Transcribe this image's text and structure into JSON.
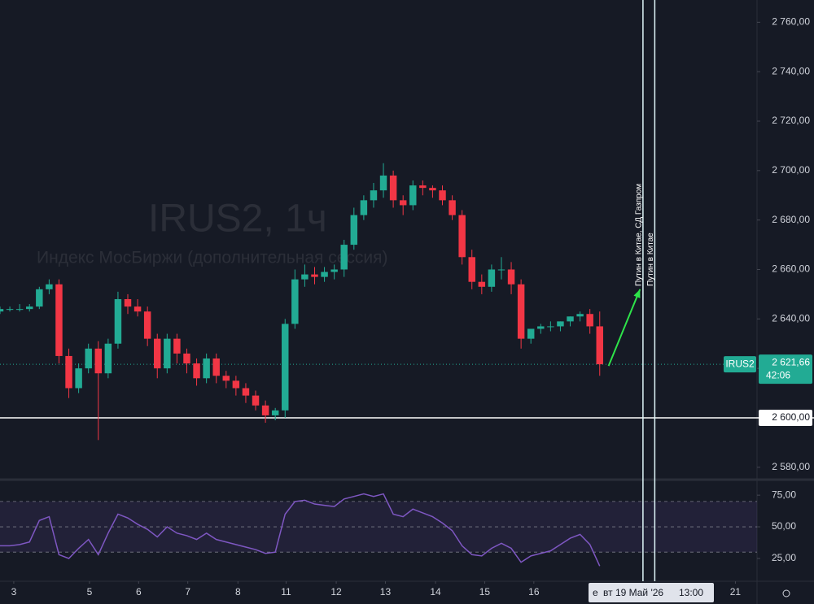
{
  "chart_data": {
    "type": "candlestick",
    "watermark": "IRUS2, 1ч",
    "subtitle": "Индекс МосБиржи (дополнительная сессия)",
    "up_color": "#22ab94",
    "down_color": "#f23645",
    "x": [
      0,
      1,
      2,
      3,
      4,
      5,
      6,
      7,
      8,
      9,
      10,
      11,
      12,
      13,
      14,
      15,
      16,
      17,
      18,
      19,
      20,
      21,
      22,
      23,
      24,
      25,
      26,
      27,
      28,
      29,
      30,
      31,
      32,
      33,
      34,
      35,
      36,
      37,
      38,
      39,
      40,
      41,
      42,
      43,
      44,
      45,
      46,
      47,
      48,
      49,
      50,
      51,
      52,
      53,
      54,
      55,
      56,
      57,
      58,
      59,
      60,
      61
    ],
    "open": [
      2643,
      2644,
      2644,
      2644,
      2645,
      2652,
      2654,
      2625,
      2612,
      2620,
      2628,
      2618,
      2630,
      2648,
      2645,
      2643,
      2632,
      2620,
      2632,
      2626,
      2622,
      2616,
      2624,
      2617,
      2615,
      2612,
      2609,
      2605,
      2601,
      2603,
      2638,
      2656,
      2658,
      2657,
      2659,
      2660,
      2670,
      2682,
      2688,
      2692,
      2698,
      2688,
      2686,
      2694,
      2693,
      2692,
      2688,
      2682,
      2665,
      2655,
      2653,
      2660,
      2660,
      2654,
      2632,
      2636,
      2637,
      2637,
      2639,
      2641,
      2642,
      2637
    ],
    "high": [
      2645,
      2645,
      2646,
      2646,
      2653,
      2656,
      2656,
      2628,
      2622,
      2630,
      2631,
      2632,
      2651,
      2650,
      2648,
      2645,
      2634,
      2634,
      2634,
      2628,
      2624,
      2626,
      2626,
      2619,
      2617,
      2614,
      2611,
      2607,
      2604,
      2640,
      2660,
      2662,
      2661,
      2661,
      2662,
      2672,
      2685,
      2690,
      2695,
      2703,
      2700,
      2690,
      2696,
      2696,
      2694,
      2694,
      2690,
      2684,
      2668,
      2658,
      2662,
      2665,
      2663,
      2656,
      2636,
      2638,
      2639,
      2639,
      2641,
      2643,
      2644,
      2643
    ],
    "low": [
      2642,
      2643,
      2643,
      2643,
      2644,
      2650,
      2622,
      2608,
      2610,
      2618,
      2591,
      2616,
      2628,
      2642,
      2641,
      2629,
      2616,
      2618,
      2622,
      2618,
      2613,
      2614,
      2614,
      2612,
      2609,
      2606,
      2603,
      2598,
      2599,
      2600,
      2636,
      2653,
      2654,
      2655,
      2656,
      2657,
      2668,
      2680,
      2685,
      2689,
      2685,
      2682,
      2684,
      2690,
      2689,
      2686,
      2680,
      2662,
      2652,
      2650,
      2651,
      2656,
      2650,
      2628,
      2630,
      2634,
      2635,
      2635,
      2637,
      2639,
      2634,
      2617
    ],
    "close": [
      2644,
      2644,
      2644,
      2645,
      2652,
      2654,
      2625,
      2612,
      2620,
      2628,
      2618,
      2630,
      2648,
      2645,
      2643,
      2632,
      2620,
      2632,
      2626,
      2622,
      2616,
      2624,
      2617,
      2615,
      2612,
      2609,
      2605,
      2601,
      2603,
      2638,
      2656,
      2658,
      2657,
      2659,
      2660,
      2670,
      2682,
      2688,
      2692,
      2698,
      2688,
      2686,
      2694,
      2693,
      2692,
      2688,
      2682,
      2665,
      2655,
      2653,
      2660,
      2660,
      2654,
      2632,
      2636,
      2637,
      2637,
      2639,
      2641,
      2642,
      2637,
      2621.66
    ],
    "xlim": [
      0,
      77
    ],
    "xticks": [
      {
        "value": 1.4,
        "label": "3"
      },
      {
        "value": 9.1,
        "label": "5"
      },
      {
        "value": 14.1,
        "label": "6"
      },
      {
        "value": 19.1,
        "label": "7"
      },
      {
        "value": 24.2,
        "label": "8"
      },
      {
        "value": 29.1,
        "label": "11"
      },
      {
        "value": 34.2,
        "label": "12"
      },
      {
        "value": 39.2,
        "label": "13"
      },
      {
        "value": 44.3,
        "label": "14"
      },
      {
        "value": 49.3,
        "label": "15"
      },
      {
        "value": 54.3,
        "label": "16"
      },
      {
        "value": 74.8,
        "label": "21"
      }
    ],
    "ylim": [
      2575,
      2769
    ],
    "yticks": [
      {
        "value": 2580,
        "label": "2 580,00"
      },
      {
        "value": 2600,
        "label": "2 600,00"
      },
      {
        "value": 2620,
        "label": "2 620,00"
      },
      {
        "value": 2640,
        "label": "2 640,00"
      },
      {
        "value": 2660,
        "label": "2 660,00"
      },
      {
        "value": 2680,
        "label": "2 680,00"
      },
      {
        "value": 2700,
        "label": "2 700,00"
      },
      {
        "value": 2720,
        "label": "2 720,00"
      },
      {
        "value": 2740,
        "label": "2 740,00"
      },
      {
        "value": 2760,
        "label": "2 760,00"
      }
    ],
    "hline": {
      "value": 2600,
      "label": "2 600,00"
    },
    "last_price": {
      "symbol": "IRUS2",
      "value": 2621.66,
      "label": "2 621,66",
      "countdown": "42:06"
    },
    "annotations": [
      {
        "x": 65.4,
        "text": "Путин в Китае, СД Газпром"
      },
      {
        "x": 66.6,
        "text": "Путин в Китае"
      }
    ],
    "arrow": {
      "x1": 61.9,
      "y1": 2621,
      "x2": 65.1,
      "y2": 2652,
      "color": "#2ee44a"
    },
    "crosshair_label": {
      "prefix": "е",
      "date": "вт 19 Май '26",
      "time": "13:00"
    },
    "rsi": {
      "color": "#7e57c2",
      "values": [
        35,
        35,
        36,
        38,
        55,
        58,
        28,
        25,
        33,
        40,
        28,
        45,
        60,
        57,
        52,
        48,
        42,
        50,
        45,
        43,
        40,
        45,
        40,
        38,
        36,
        34,
        32,
        29,
        30,
        60,
        70,
        71,
        68,
        67,
        66,
        72,
        74,
        76,
        74,
        76,
        60,
        58,
        64,
        61,
        58,
        53,
        47,
        35,
        28,
        27,
        33,
        37,
        33,
        22,
        27,
        29,
        31,
        36,
        41,
        44,
        36,
        19
      ],
      "ylim": [
        7,
        86
      ],
      "yticks": [
        {
          "value": 25,
          "label": "25,00"
        },
        {
          "value": 50,
          "label": "50,00"
        },
        {
          "value": 75,
          "label": "75,00"
        }
      ],
      "bands": [
        30,
        50,
        70
      ]
    }
  }
}
